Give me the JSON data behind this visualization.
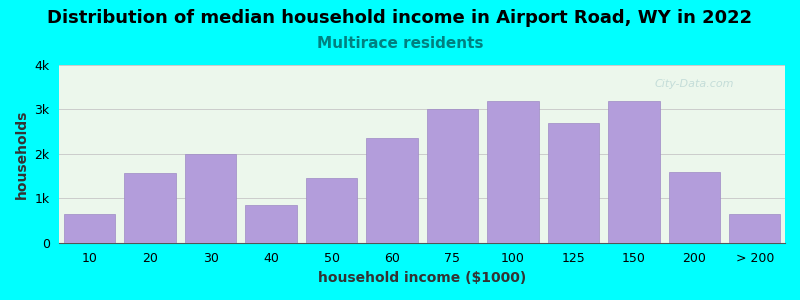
{
  "title": "Distribution of median household income in Airport Road, WY in 2022",
  "subtitle": "Multirace residents",
  "xlabel": "household income ($1000)",
  "ylabel": "households",
  "background_color": "#00FFFF",
  "plot_bg_gradient_top": "#e8f5e9",
  "plot_bg_gradient_bottom": "#ffffff",
  "bar_color": "#b39ddb",
  "bar_edge_color": "#9e8bc4",
  "categories": [
    "10",
    "20",
    "30",
    "40",
    "50",
    "60",
    "75",
    "100",
    "125",
    "150",
    "200",
    "> 200"
  ],
  "values": [
    650,
    1580,
    2000,
    850,
    1450,
    2350,
    3000,
    3200,
    2700,
    3200,
    1600,
    650
  ],
  "ylim": [
    0,
    4000
  ],
  "yticks": [
    0,
    1000,
    2000,
    3000,
    4000
  ],
  "ytick_labels": [
    "0",
    "1k",
    "2k",
    "3k",
    "4k"
  ],
  "title_fontsize": 13,
  "subtitle_fontsize": 11,
  "axis_fontsize": 9,
  "label_fontsize": 10,
  "watermark": "City-Data.com"
}
